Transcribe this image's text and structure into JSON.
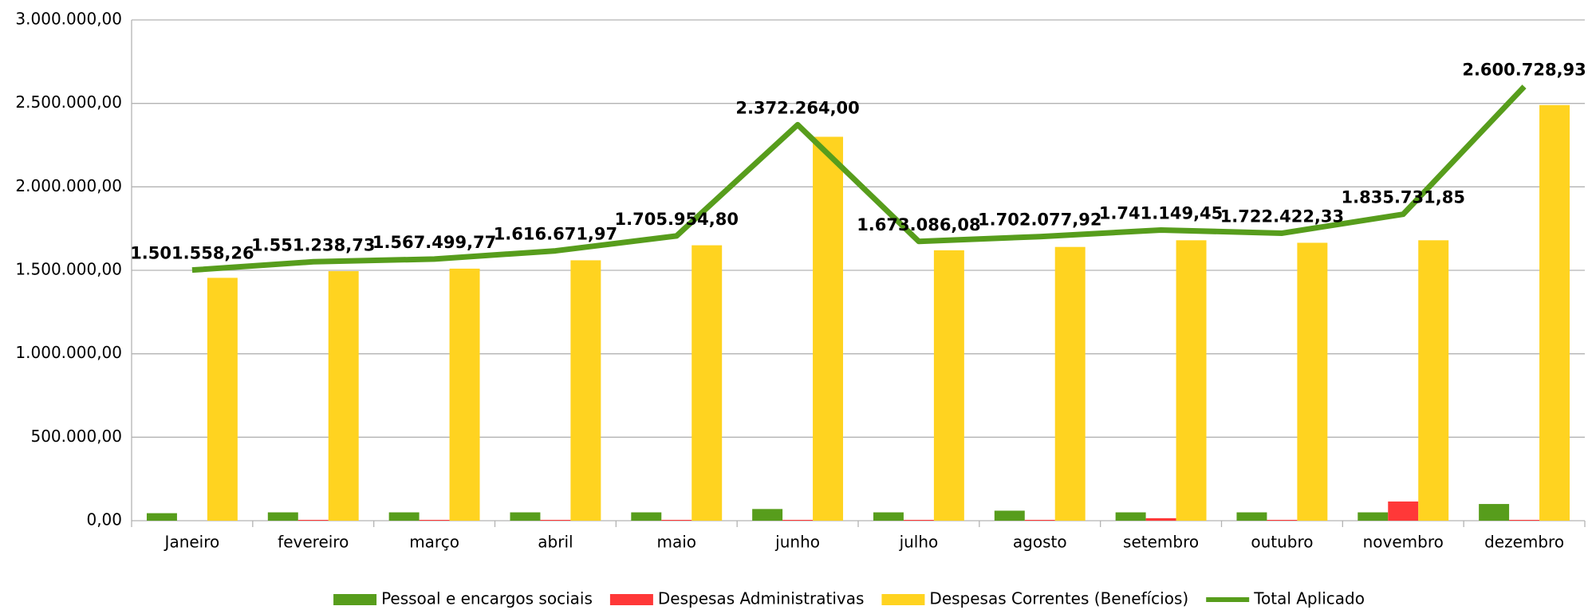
{
  "chart_data": {
    "type": "bar",
    "categories": [
      "Janeiro",
      "fevereiro",
      "março",
      "abril",
      "maio",
      "junho",
      "julho",
      "agosto",
      "setembro",
      "outubro",
      "novembro",
      "dezembro"
    ],
    "series": [
      {
        "name": "Pessoal e encargos sociais",
        "color": "#579d1c",
        "type": "bar",
        "values": [
          45000,
          50000,
          50000,
          50000,
          50000,
          70000,
          50000,
          60000,
          50000,
          50000,
          50000,
          100000
        ]
      },
      {
        "name": "Despesas Administrativas",
        "color": "#ff3838",
        "type": "bar",
        "values": [
          0,
          5000,
          5000,
          5000,
          5000,
          5000,
          5000,
          5000,
          15000,
          5000,
          115000,
          5000
        ]
      },
      {
        "name": "Despesas Correntes (Benefícios)",
        "color": "#ffd320",
        "type": "bar",
        "values": [
          1455000,
          1495000,
          1510000,
          1560000,
          1650000,
          2300000,
          1620000,
          1640000,
          1680000,
          1665000,
          1680000,
          2490000
        ]
      },
      {
        "name": "Total Aplicado",
        "color": "#579d1c",
        "type": "line",
        "values": [
          1501558.26,
          1551238.73,
          1567499.77,
          1616671.97,
          1705954.8,
          2372264.0,
          1673086.08,
          1702077.92,
          1741149.45,
          1722422.33,
          1835731.85,
          2600728.93
        ],
        "value_labels": [
          "1.501.558,26",
          "1.551.238,73",
          "1.567.499,77",
          "1.616.671,97",
          "1.705.954,80",
          "2.372.264,00",
          "1.673.086,08",
          "1.702.077,92",
          "1.741.149,45",
          "1.722.422,33",
          "1.835.731,85",
          "2.600.728,93"
        ]
      }
    ],
    "ylim": [
      0,
      3000000
    ],
    "yticks": [
      {
        "value": 0,
        "label": "0,00"
      },
      {
        "value": 500000,
        "label": "500.000,00"
      },
      {
        "value": 1000000,
        "label": "1.000.000,00"
      },
      {
        "value": 1500000,
        "label": "1.500.000,00"
      },
      {
        "value": 2000000,
        "label": "2.000.000,00"
      },
      {
        "value": 2500000,
        "label": "2.500.000,00"
      },
      {
        "value": 3000000,
        "label": "3.000.000,00"
      }
    ],
    "grid": true,
    "legend": "bottom"
  }
}
